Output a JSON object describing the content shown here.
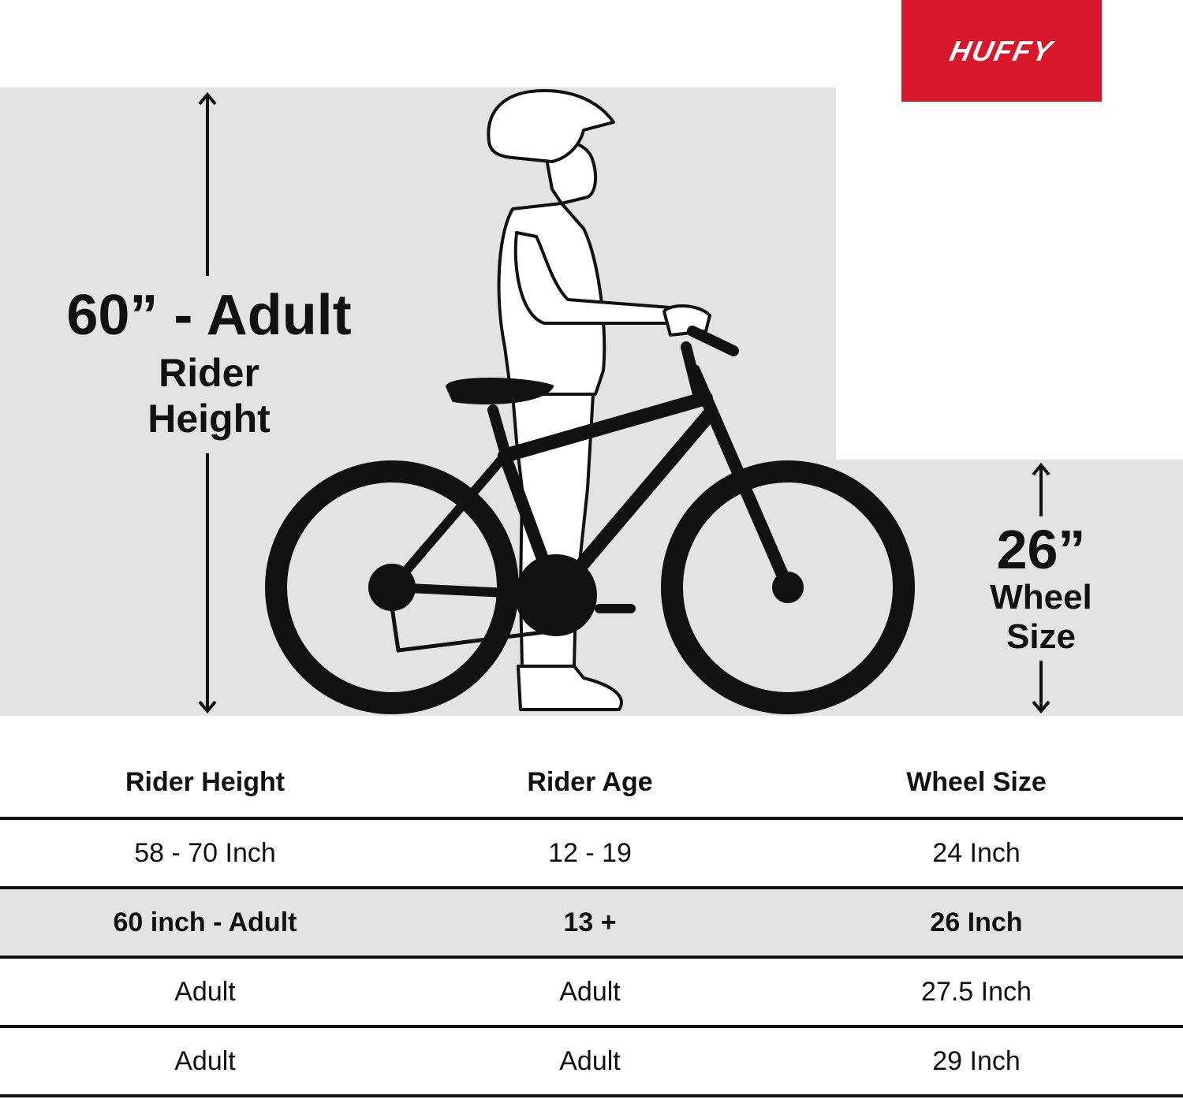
{
  "brand": {
    "logo_text": "HUFFY",
    "color": "#d8172b"
  },
  "height_callout": {
    "value": "60” - Adult",
    "label_line1": "Rider",
    "label_line2": "Height"
  },
  "wheel_callout": {
    "value": "26”",
    "label_line1": "Wheel",
    "label_line2": "Size"
  },
  "table": {
    "headers": [
      "Rider Height",
      "Rider Age",
      "Wheel Size"
    ],
    "rows": [
      [
        "58 - 70 Inch",
        "12 - 19",
        "24 Inch"
      ],
      [
        "60 inch - Adult",
        "13 +",
        "26 Inch"
      ],
      [
        "Adult",
        "Adult",
        "27.5 Inch"
      ],
      [
        "Adult",
        "Adult",
        "29 Inch"
      ]
    ],
    "highlight_row": 1
  },
  "colors": {
    "band": "#e3e3e3",
    "ink": "#111111"
  }
}
